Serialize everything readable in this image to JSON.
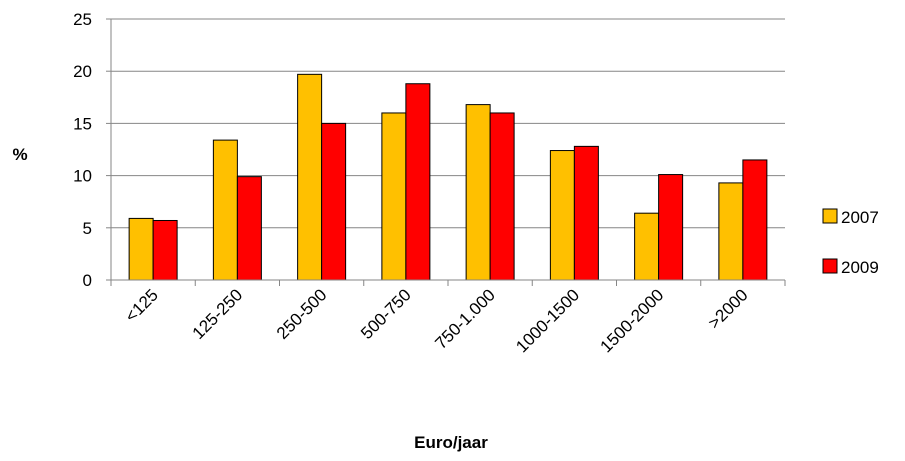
{
  "chart_data": {
    "type": "bar",
    "title": "",
    "xlabel": "Euro/jaar",
    "ylabel": "%",
    "ylim": [
      0,
      25
    ],
    "yticks": [
      0,
      5,
      10,
      15,
      20,
      25
    ],
    "grid": true,
    "legend_position": "right",
    "categories": [
      "<125",
      "125-250",
      "250-500",
      "500-750",
      "750-1.000",
      "1000-1500",
      "1500-2000",
      ">2000"
    ],
    "series": [
      {
        "name": "2007",
        "color": "#FFC000",
        "values": [
          5.9,
          13.4,
          19.7,
          16.0,
          16.8,
          12.4,
          6.4,
          9.3
        ]
      },
      {
        "name": "2009",
        "color": "#FF0000",
        "values": [
          5.7,
          9.9,
          15.0,
          18.8,
          16.0,
          12.8,
          10.1,
          11.5
        ]
      }
    ]
  }
}
